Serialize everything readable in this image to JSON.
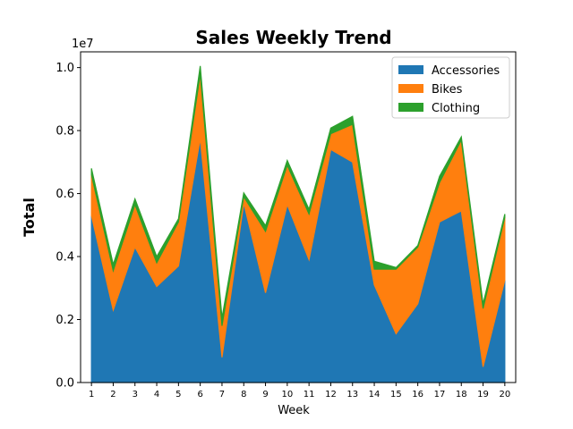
{
  "chart_data": {
    "type": "area",
    "stacked": true,
    "title": "Sales Weekly Trend",
    "xlabel": "Week",
    "ylabel": "Total",
    "y_multiplier_label": "1e7",
    "x": [
      1,
      2,
      3,
      4,
      5,
      6,
      7,
      8,
      9,
      10,
      11,
      12,
      13,
      14,
      15,
      16,
      17,
      18,
      19,
      20
    ],
    "ylim": [
      0,
      10500000
    ],
    "yticks": [
      0,
      2000000,
      4000000,
      6000000,
      8000000,
      10000000
    ],
    "ytick_labels": [
      "0.0",
      "0.2",
      "0.4",
      "0.6",
      "0.8",
      "1.0"
    ],
    "grid": false,
    "legend_position": "top-right",
    "series": [
      {
        "name": "Accessories",
        "color": "#1f77b4",
        "values": [
          5300000,
          2300000,
          4300000,
          3050000,
          3700000,
          7750000,
          800000,
          5700000,
          2850000,
          5650000,
          3900000,
          7400000,
          7000000,
          3100000,
          1550000,
          2500000,
          5100000,
          5450000,
          500000,
          3250000
        ]
      },
      {
        "name": "Bikes",
        "color": "#ff7f0e",
        "values": [
          1300000,
          1250000,
          1350000,
          750000,
          1400000,
          2050000,
          1000000,
          200000,
          1950000,
          1250000,
          1450000,
          500000,
          1200000,
          500000,
          2050000,
          1800000,
          1250000,
          2250000,
          1850000,
          2000000
        ]
      },
      {
        "name": "Clothing",
        "color": "#2ca02c",
        "values": [
          200000,
          200000,
          180000,
          200000,
          100000,
          250000,
          250000,
          120000,
          180000,
          150000,
          150000,
          180000,
          250000,
          250000,
          50000,
          50000,
          200000,
          100000,
          150000,
          100000
        ]
      }
    ]
  }
}
